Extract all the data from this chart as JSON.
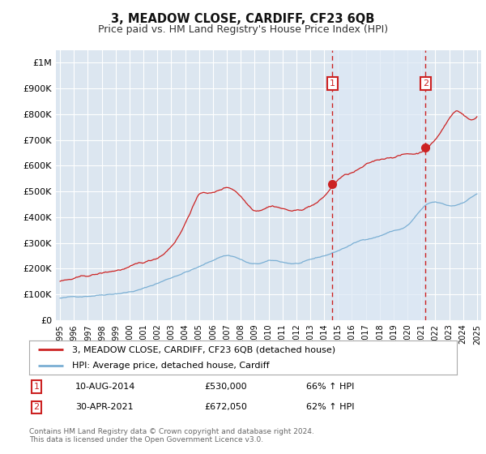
{
  "title": "3, MEADOW CLOSE, CARDIFF, CF23 6QB",
  "subtitle": "Price paid vs. HM Land Registry's House Price Index (HPI)",
  "title_fontsize": 10.5,
  "subtitle_fontsize": 9,
  "background_color": "#ffffff",
  "plot_bg_color": "#dce6f0",
  "grid_color": "#ffffff",
  "ylim": [
    0,
    1050000
  ],
  "yticks": [
    0,
    100000,
    200000,
    300000,
    400000,
    500000,
    600000,
    700000,
    800000,
    900000,
    1000000
  ],
  "ytick_labels": [
    "£0",
    "£100K",
    "£200K",
    "£300K",
    "£400K",
    "£500K",
    "£600K",
    "£700K",
    "£800K",
    "£900K",
    "£1M"
  ],
  "xlim_start": 1994.7,
  "xlim_end": 2025.3,
  "red_line_color": "#cc2222",
  "blue_line_color": "#7aafd4",
  "event_line_color": "#cc2222",
  "event_box_color": "#cc2222",
  "event1_label": "1",
  "event2_label": "2",
  "shade_color": "#dce8f5",
  "legend_line1": "3, MEADOW CLOSE, CARDIFF, CF23 6QB (detached house)",
  "legend_line2": "HPI: Average price, detached house, Cardiff",
  "annotation1_num": "1",
  "annotation1_date": "10-AUG-2014",
  "annotation1_price": "£530,000",
  "annotation1_hpi": "66% ↑ HPI",
  "annotation2_num": "2",
  "annotation2_date": "30-APR-2021",
  "annotation2_price": "£672,050",
  "annotation2_hpi": "62% ↑ HPI",
  "footnote": "Contains HM Land Registry data © Crown copyright and database right 2024.\nThis data is licensed under the Open Government Licence v3.0.",
  "event1_x": 2014.6,
  "event1_y": 530000,
  "event2_x": 2021.3,
  "event2_y": 672050
}
